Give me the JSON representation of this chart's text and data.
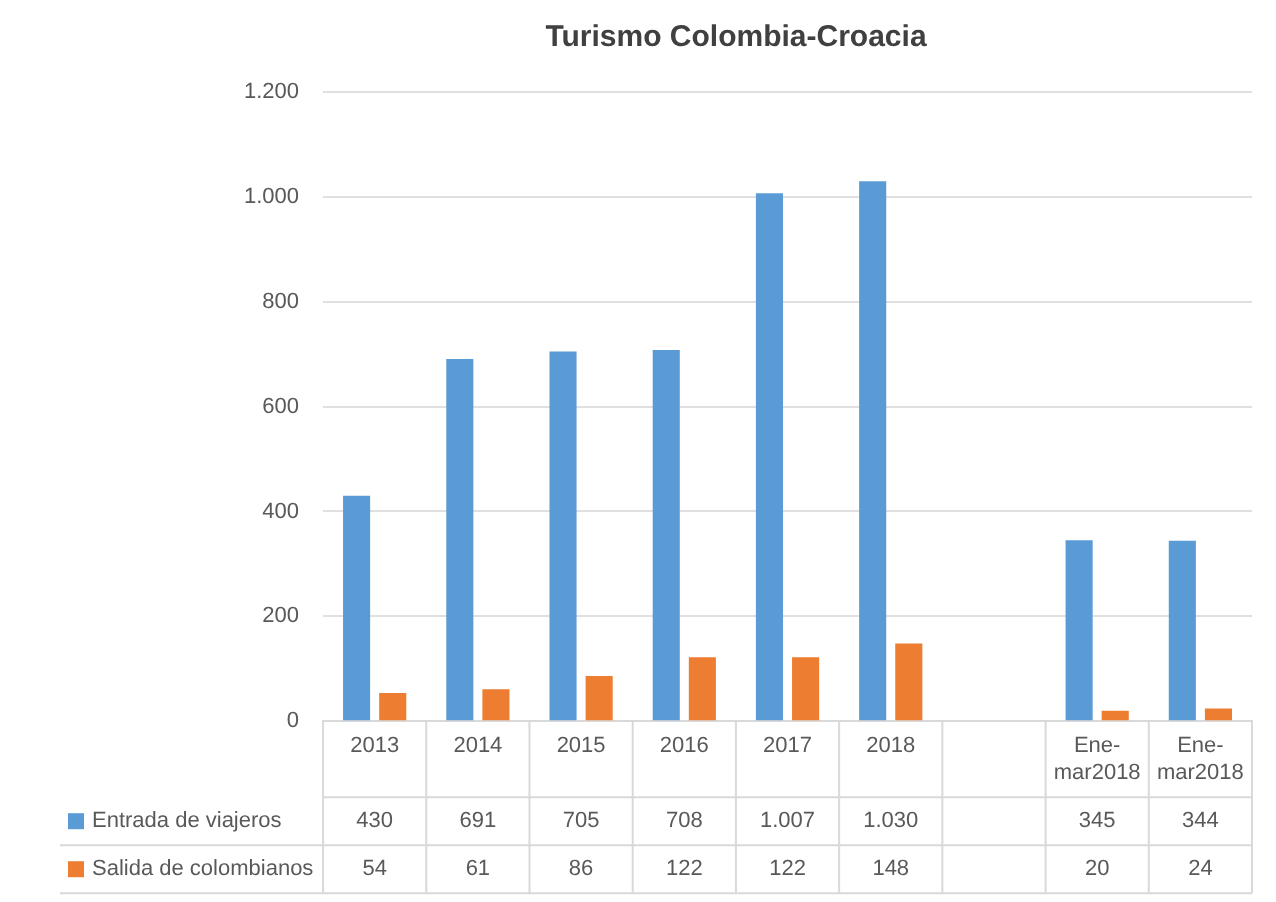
{
  "chart_data": {
    "type": "bar",
    "title": "Turismo Colombia-Croacia",
    "categories": [
      "2013",
      "2014",
      "2015",
      "2016",
      "2017",
      "2018",
      null,
      "Ene-mar2018",
      "Ene-mar2018"
    ],
    "series": [
      {
        "name": "Entrada de viajeros",
        "color": "#5b9bd5",
        "values": [
          430,
          691,
          705,
          708,
          1007,
          1030,
          null,
          345,
          344
        ],
        "value_labels": [
          "430",
          "691",
          "705",
          "708",
          "1.007",
          "1.030",
          null,
          "345",
          "344"
        ]
      },
      {
        "name": "Salida de colombianos",
        "color": "#ed7d31",
        "values": [
          54,
          61,
          86,
          122,
          122,
          148,
          null,
          20,
          24
        ],
        "value_labels": [
          "54",
          "61",
          "86",
          "122",
          "122",
          "148",
          null,
          "20",
          "24"
        ]
      }
    ],
    "ylim": [
      0,
      1200
    ],
    "yticks": [
      0,
      200,
      400,
      600,
      800,
      {
        "value": 1000,
        "label": "1.000"
      },
      {
        "value": 1200,
        "label": "1.200"
      }
    ],
    "grid": "y",
    "legend": "bottom"
  }
}
